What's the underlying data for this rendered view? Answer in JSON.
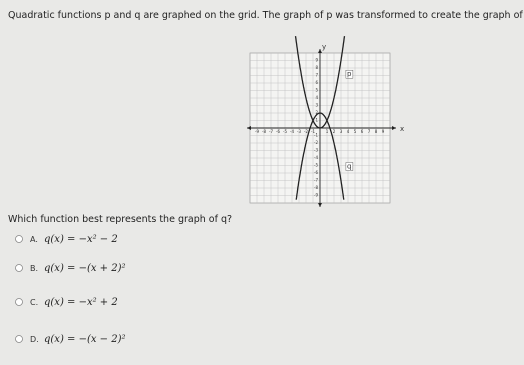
{
  "question": "Quadratic functions p and q are graphed on the grid. The graph of p was transformed to create the graph of q.",
  "graph": {
    "x_label": "x",
    "y_label": "y",
    "curve_labels": [
      "p",
      "q"
    ],
    "x_ticks": [
      -9,
      -8,
      -7,
      -6,
      -5,
      -4,
      -3,
      -2,
      -1,
      1,
      2,
      3,
      4,
      5,
      6,
      7,
      8,
      9
    ],
    "y_ticks": [
      -9,
      -8,
      -7,
      -6,
      -5,
      -4,
      -3,
      -2,
      -1,
      1,
      2,
      3,
      4,
      5,
      6,
      7,
      8,
      9
    ]
  },
  "prompt": "Which function best represents the graph of q?",
  "options": [
    {
      "letter": "A.",
      "text": "q(x) = −x² − 2"
    },
    {
      "letter": "B.",
      "text": "q(x) = −(x + 2)²"
    },
    {
      "letter": "C.",
      "text": "q(x) = −x² + 2"
    },
    {
      "letter": "D.",
      "text": "q(x) = −(x − 2)²"
    }
  ]
}
